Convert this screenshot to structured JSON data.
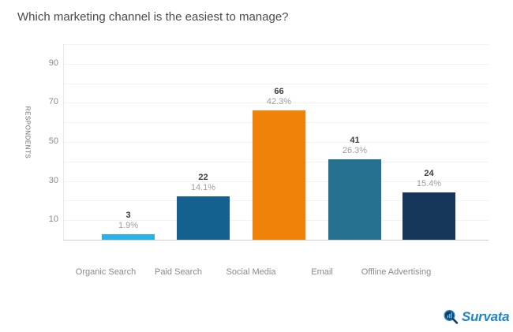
{
  "title": "Which marketing channel is the easiest to manage?",
  "chart_data": {
    "type": "bar",
    "title": "Which marketing channel is the easiest to manage?",
    "ylabel": "RESPONDENTS",
    "xlabel": "",
    "categories": [
      "Organic Search",
      "Paid Search",
      "Social Media",
      "Email",
      "Offline Advertising"
    ],
    "values": [
      3,
      22,
      66,
      41,
      24
    ],
    "value_labels": [
      "3",
      "22",
      "66",
      "41",
      "24"
    ],
    "percent_labels": [
      "1.9%",
      "14.1%",
      "42.3%",
      "26.3%",
      "15.4%"
    ],
    "bar_colors": [
      "#29B1E8",
      "#14608F",
      "#F0820A",
      "#26718F",
      "#17375A"
    ],
    "ylim": [
      0,
      100
    ],
    "yticks": [
      10,
      30,
      50,
      70,
      90
    ],
    "grid_step": 10,
    "grid": "horizontal",
    "legend": "none"
  },
  "branding": {
    "logo_text": "Survata",
    "logo_color": "#1E86C8",
    "logo_icon": "magnifier-bar-chart-icon",
    "icon_dark": "#17375A",
    "icon_bars": "#4FB3E8"
  }
}
